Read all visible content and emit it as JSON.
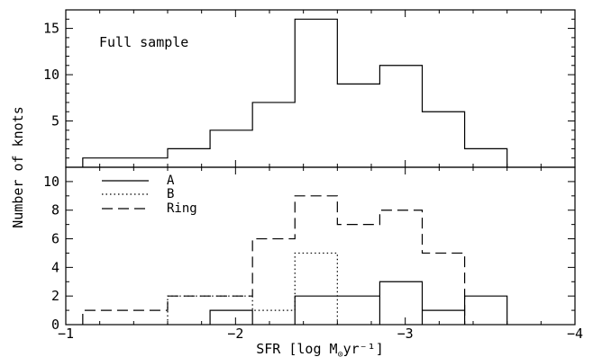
{
  "chart_data": [
    {
      "type": "histogram",
      "panel": "top",
      "annotation": "Full sample",
      "bin_edges": [
        -1.1,
        -1.6,
        -1.85,
        -2.1,
        -2.35,
        -2.6,
        -2.85,
        -3.1,
        -3.35,
        -3.6
      ],
      "values": [
        1,
        2,
        4,
        7,
        16,
        9,
        11,
        6,
        2
      ],
      "xlim": [
        -1,
        -4
      ],
      "ylim": [
        0,
        17
      ],
      "yticks": [
        5,
        10,
        15
      ],
      "series": [
        {
          "values": [
            1,
            2,
            4,
            7,
            16,
            9,
            11,
            6,
            2
          ],
          "style": "solid"
        }
      ]
    },
    {
      "type": "histogram",
      "panel": "bottom",
      "xlim": [
        -1,
        -4
      ],
      "ylim": [
        0,
        11
      ],
      "yticks": [
        0,
        2,
        4,
        6,
        8,
        10
      ],
      "legend_position": "top-left",
      "series": [
        {
          "name": "A",
          "style": "solid",
          "segments": [
            {
              "x0": -1.85,
              "x1": -2.1,
              "value": 1
            },
            {
              "x0": -2.35,
              "x1": -2.85,
              "value": 2
            },
            {
              "x0": -2.85,
              "x1": -3.1,
              "value": 3
            },
            {
              "x0": -3.1,
              "x1": -3.35,
              "value": 1
            },
            {
              "x0": -3.35,
              "x1": -3.6,
              "value": 2
            }
          ]
        },
        {
          "name": "B",
          "style": "dotted",
          "bin_edges": [
            -1.6,
            -2.1,
            -2.35,
            -2.6
          ],
          "values": [
            2,
            1,
            5
          ]
        },
        {
          "name": "Ring",
          "style": "dashed",
          "bin_edges": [
            -1.1,
            -1.6,
            -2.1,
            -2.35,
            -2.6,
            -2.85,
            -3.1,
            -3.35
          ],
          "values": [
            1,
            2,
            6,
            9,
            7,
            8,
            5
          ]
        }
      ]
    }
  ],
  "axes": {
    "ylabel": "Number of knots",
    "xlabel_parts": {
      "pre": "SFR [log M",
      "sub": "⊙",
      "post": "yr⁻¹]"
    },
    "xticklabels": [
      {
        "value": -1,
        "label": "−1"
      },
      {
        "value": -2,
        "label": "−2"
      },
      {
        "value": -3,
        "label": "−3"
      },
      {
        "value": -4,
        "label": "−4"
      }
    ],
    "top_yticklabels": [
      "5",
      "10",
      "15"
    ],
    "bottom_yticklabels": [
      "0",
      "2",
      "4",
      "6",
      "8",
      "10"
    ]
  },
  "colors": {
    "ink": "#000000",
    "background": "#ffffff"
  }
}
